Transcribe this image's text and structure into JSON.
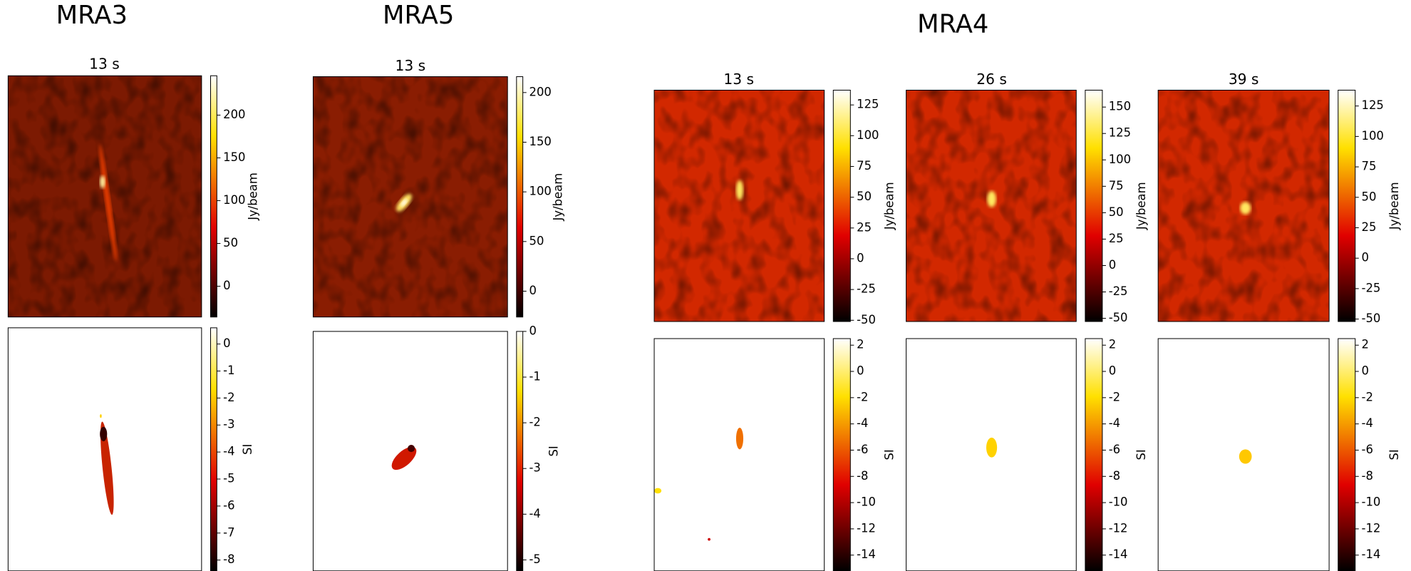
{
  "figure": {
    "groups": [
      {
        "title": "MRA3",
        "panels": [
          {
            "title": "13 s",
            "flux": {
              "label": "Jy/beam",
              "lim": [
                -36,
                246
              ],
              "ticks": [
                0,
                50,
                100,
                150,
                200
              ]
            },
            "si": {
              "label": "SI",
              "lim": [
                -8.4,
                0.6
              ],
              "ticks": [
                0,
                -1,
                -2,
                -3,
                -4,
                -5,
                -6,
                -7,
                -8
              ]
            }
          }
        ]
      },
      {
        "title": "MRA5",
        "panels": [
          {
            "title": "13 s",
            "flux": {
              "label": "Jy/beam",
              "lim": [
                -26,
                216
              ],
              "ticks": [
                0,
                50,
                100,
                150,
                200
              ]
            },
            "si": {
              "label": "SI",
              "lim": [
                -5.24,
                0
              ],
              "ticks": [
                0,
                -1,
                -2,
                -3,
                -4,
                -5
              ]
            }
          }
        ]
      },
      {
        "title": "MRA4",
        "panels": [
          {
            "title": "13 s",
            "flux": {
              "label": "Jy/beam",
              "lim": [
                -51,
                137
              ],
              "ticks": [
                -50,
                -25,
                0,
                25,
                50,
                75,
                100,
                125
              ]
            },
            "si": {
              "label": "SI",
              "lim": [
                -15.2,
                2.5
              ],
              "ticks": [
                -14,
                -12,
                -10,
                -8,
                -6,
                -4,
                -2,
                0,
                2
              ]
            }
          },
          {
            "title": "26 s",
            "flux": {
              "label": "Jy/beam",
              "lim": [
                -53,
                166
              ],
              "ticks": [
                -50,
                -25,
                0,
                25,
                50,
                75,
                100,
                125,
                150
              ]
            },
            "si": {
              "label": "SI",
              "lim": [
                -15.2,
                2.5
              ],
              "ticks": [
                -14,
                -12,
                -10,
                -8,
                -6,
                -4,
                -2,
                0,
                2
              ]
            }
          },
          {
            "title": "39 s",
            "flux": {
              "label": "Jy/beam",
              "lim": [
                -52,
                138
              ],
              "ticks": [
                -50,
                -25,
                0,
                25,
                50,
                75,
                100,
                125
              ]
            },
            "si": {
              "label": "SI",
              "lim": [
                -15.2,
                2.5
              ],
              "ticks": [
                -14,
                -12,
                -10,
                -8,
                -6,
                -4,
                -2,
                0,
                2
              ]
            }
          }
        ]
      }
    ]
  }
}
